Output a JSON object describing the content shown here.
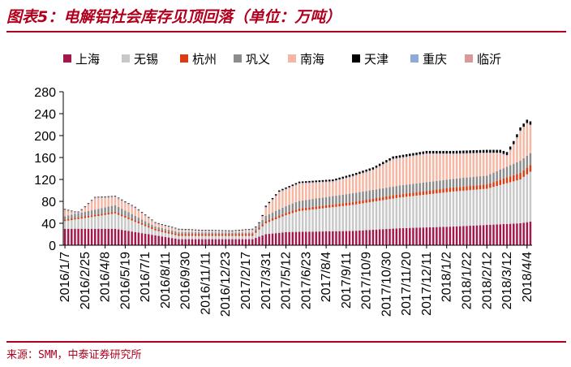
{
  "title": "图表5：电解铝社会库存见顶回落（单位：万吨）",
  "source": "来源：SMM，中泰证券研究所",
  "chart_data": {
    "type": "bar",
    "stacked": true,
    "ylim": [
      0,
      280
    ],
    "yticks": [
      0,
      40,
      80,
      120,
      160,
      200,
      240,
      280
    ],
    "grid": false,
    "legend_position": "top",
    "xtick_labels": [
      "2016/1/7",
      "2016/2/25",
      "2016/4/8",
      "2016/5/19",
      "2016/7/1",
      "2016/8/11",
      "2016/9/30",
      "2016/11/11",
      "2016/12/23",
      "2017/2/17",
      "2017/3/31",
      "2017/5/12",
      "2017/6/23",
      "2017/8/4",
      "2017/9/11",
      "2017/10/9",
      "2017/10/30",
      "2017/11/20",
      "2017/12/11",
      "2018/1/2",
      "2018/1/22",
      "2018/2/12",
      "2018/3/12",
      "2018/4/4"
    ],
    "xtick_indices": [
      0,
      6,
      12,
      18,
      24,
      30,
      36,
      42,
      48,
      54,
      60,
      66,
      72,
      78,
      84,
      90,
      96,
      102,
      108,
      114,
      120,
      126,
      132,
      138
    ],
    "n_points": 140,
    "series": [
      {
        "name": "上海",
        "color": "#a5174a"
      },
      {
        "name": "无锡",
        "color": "#c8c8c8"
      },
      {
        "name": "杭州",
        "color": "#dd3c12"
      },
      {
        "name": "巩义",
        "color": "#8c8c8c"
      },
      {
        "name": "南海",
        "color": "#f6b6a2"
      },
      {
        "name": "天津",
        "color": "#000000"
      },
      {
        "name": "重庆",
        "color": "#8eaad6"
      },
      {
        "name": "临沂",
        "color": "#d89a96"
      }
    ],
    "total_knots": [
      [
        0,
        66
      ],
      [
        4,
        60
      ],
      [
        9,
        88
      ],
      [
        15,
        90
      ],
      [
        21,
        70
      ],
      [
        27,
        42
      ],
      [
        34,
        30
      ],
      [
        41,
        28
      ],
      [
        50,
        27
      ],
      [
        56,
        30
      ],
      [
        58,
        38
      ],
      [
        60,
        72
      ],
      [
        64,
        100
      ],
      [
        70,
        116
      ],
      [
        80,
        120
      ],
      [
        86,
        130
      ],
      [
        92,
        142
      ],
      [
        98,
        162
      ],
      [
        104,
        168
      ],
      [
        108,
        172
      ],
      [
        116,
        172
      ],
      [
        126,
        174
      ],
      [
        130,
        174
      ],
      [
        132,
        170
      ],
      [
        134,
        190
      ],
      [
        136,
        215
      ],
      [
        138,
        229
      ],
      [
        139,
        226
      ]
    ],
    "shanghai_knots": [
      [
        0,
        30
      ],
      [
        15,
        30
      ],
      [
        27,
        18
      ],
      [
        34,
        11
      ],
      [
        56,
        11
      ],
      [
        60,
        20
      ],
      [
        66,
        24
      ],
      [
        86,
        26
      ],
      [
        100,
        31
      ],
      [
        116,
        34
      ],
      [
        136,
        40
      ],
      [
        139,
        43
      ]
    ],
    "wuxi_knots": [
      [
        0,
        14
      ],
      [
        15,
        28
      ],
      [
        27,
        9
      ],
      [
        34,
        6
      ],
      [
        56,
        6
      ],
      [
        60,
        20
      ],
      [
        70,
        38
      ],
      [
        100,
        56
      ],
      [
        116,
        64
      ],
      [
        126,
        66
      ],
      [
        136,
        80
      ],
      [
        139,
        91
      ]
    ],
    "hangzhou_knots": [
      [
        0,
        3
      ],
      [
        56,
        3
      ],
      [
        62,
        4
      ],
      [
        100,
        6
      ],
      [
        126,
        8
      ],
      [
        136,
        12
      ],
      [
        139,
        12
      ]
    ],
    "gongyi_knots": [
      [
        0,
        6
      ],
      [
        15,
        12
      ],
      [
        27,
        4
      ],
      [
        56,
        3
      ],
      [
        60,
        10
      ],
      [
        70,
        14
      ],
      [
        86,
        16
      ],
      [
        126,
        16
      ],
      [
        136,
        22
      ],
      [
        139,
        22
      ]
    ],
    "tianjin_knots": [
      [
        0,
        1
      ],
      [
        56,
        1
      ],
      [
        60,
        2
      ],
      [
        96,
        4
      ],
      [
        128,
        5
      ],
      [
        139,
        6
      ]
    ],
    "chongqing_knots": [
      [
        0,
        1
      ],
      [
        139,
        1
      ]
    ],
    "linyi_knots": [
      [
        0,
        1
      ],
      [
        139,
        1
      ]
    ]
  }
}
